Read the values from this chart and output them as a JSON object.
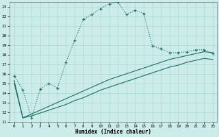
{
  "xlabel": "Humidex (Indice chaleur)",
  "xlim": [
    -0.5,
    23.5
  ],
  "ylim": [
    11,
    23.5
  ],
  "yticks": [
    11,
    12,
    13,
    14,
    15,
    16,
    17,
    18,
    19,
    20,
    21,
    22,
    23
  ],
  "xticks": [
    0,
    1,
    2,
    3,
    4,
    5,
    6,
    7,
    8,
    9,
    10,
    11,
    12,
    13,
    14,
    15,
    16,
    17,
    18,
    19,
    20,
    21,
    22,
    23
  ],
  "bg_color": "#ccecea",
  "line_color": "#1a6e62",
  "grid_color": "#aad6d2",
  "line1_x": [
    0,
    1,
    2,
    3,
    4,
    5,
    6,
    7,
    8,
    9,
    10,
    11,
    12,
    13,
    14,
    15,
    16,
    17,
    18,
    19,
    20,
    21,
    22,
    23
  ],
  "line1_y": [
    15.8,
    14.3,
    11.4,
    14.4,
    15.0,
    14.5,
    17.2,
    19.5,
    21.7,
    22.2,
    22.8,
    23.3,
    23.5,
    22.2,
    22.6,
    22.3,
    18.9,
    18.6,
    18.2,
    18.2,
    18.3,
    18.5,
    18.5,
    18.1
  ],
  "line2_x": [
    0,
    1,
    2,
    3,
    4,
    5,
    6,
    7,
    8,
    9,
    10,
    11,
    12,
    13,
    14,
    15,
    16,
    17,
    18,
    19,
    20,
    21,
    22,
    23
  ],
  "line2_y": [
    15.3,
    11.4,
    11.8,
    12.2,
    12.6,
    13.0,
    13.4,
    13.8,
    14.2,
    14.6,
    15.0,
    15.4,
    15.7,
    16.0,
    16.3,
    16.6,
    16.9,
    17.2,
    17.5,
    17.7,
    17.9,
    18.1,
    18.3,
    18.2
  ],
  "line3_x": [
    0,
    1,
    2,
    3,
    4,
    5,
    6,
    7,
    8,
    9,
    10,
    11,
    12,
    13,
    14,
    15,
    16,
    17,
    18,
    19,
    20,
    21,
    22,
    23
  ],
  "line3_y": [
    15.0,
    11.4,
    11.6,
    11.9,
    12.2,
    12.5,
    12.8,
    13.2,
    13.5,
    13.9,
    14.3,
    14.6,
    14.9,
    15.2,
    15.5,
    15.8,
    16.1,
    16.4,
    16.7,
    16.9,
    17.2,
    17.4,
    17.6,
    17.5
  ]
}
